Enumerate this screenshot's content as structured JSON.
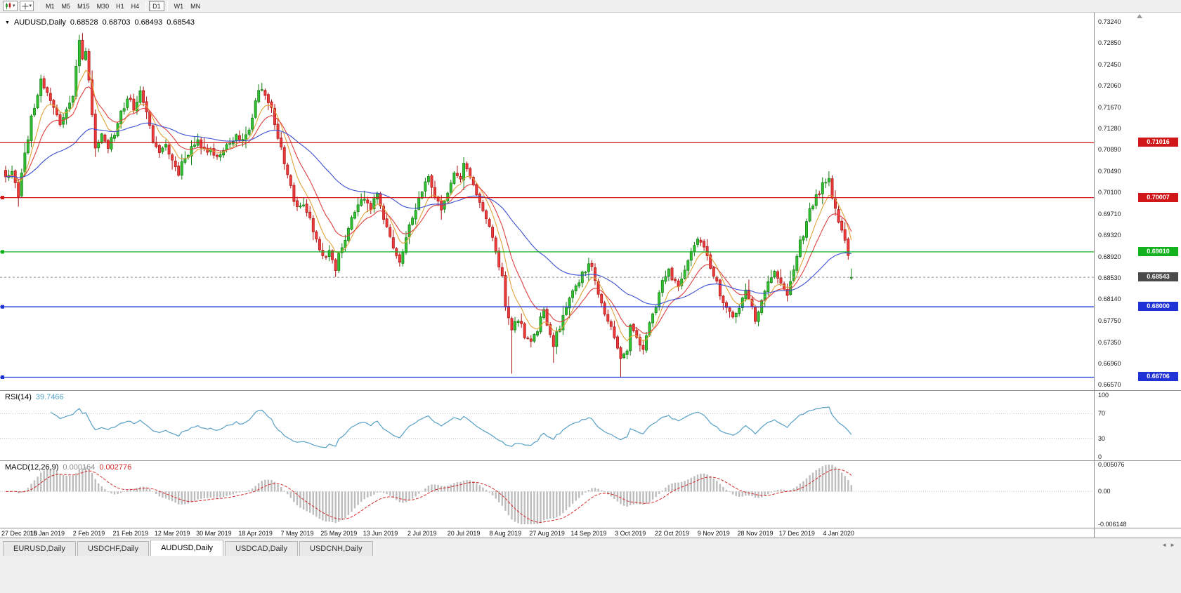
{
  "toolbar": {
    "timeframes": [
      "M1",
      "M5",
      "M15",
      "M30",
      "H1",
      "H4",
      "D1",
      "W1",
      "MN"
    ],
    "active_timeframe": "D1"
  },
  "main_chart": {
    "symbol_title": "AUDUSD,Daily",
    "ohlc": {
      "open": "0.68528",
      "high": "0.68703",
      "low": "0.68493",
      "close": "0.68543"
    },
    "price_axis_labels": [
      "0.73240",
      "0.72850",
      "0.72450",
      "0.72060",
      "0.71670",
      "0.71280",
      "0.70890",
      "0.70490",
      "0.70100",
      "0.69710",
      "0.69320",
      "0.68920",
      "0.68530",
      "0.68140",
      "0.67750",
      "0.67350",
      "0.66960",
      "0.66570"
    ],
    "horizontal_lines": [
      {
        "price": 0.71016,
        "label": "0.71016",
        "color": "#d01616",
        "left_marker": false
      },
      {
        "price": 0.70007,
        "label": "0.70007",
        "color": "#d01616",
        "left_marker": true
      },
      {
        "price": 0.6901,
        "label": "0.69010",
        "color": "#12b11e",
        "left_marker": true
      },
      {
        "price": 0.68,
        "label": "0.68000",
        "color": "#1e32d6",
        "left_marker": true
      },
      {
        "price": 0.66706,
        "label": "0.66706",
        "color": "#1e32d6",
        "left_marker": true
      }
    ],
    "current_price": 0.68543,
    "current_price_label": "0.68543"
  },
  "rsi_panel": {
    "title": "RSI(14)",
    "value": "39.7466",
    "axis": [
      {
        "label": "100",
        "value": 100
      },
      {
        "label": "70",
        "value": 70
      },
      {
        "label": "30",
        "value": 30
      },
      {
        "label": "0",
        "value": 0
      }
    ],
    "levels": [
      70,
      30
    ]
  },
  "macd_panel": {
    "title": "MACD(12,26,9)",
    "macd_value": "0.000164",
    "signal_value": "0.002776",
    "axis": [
      {
        "label": "0.005076",
        "value": 0.005076
      },
      {
        "label": "0.00",
        "value": 0
      },
      {
        "label": "-0.006148",
        "value": -0.006148
      }
    ],
    "scale_max": 0.005076,
    "scale_min": -0.006148
  },
  "time_axis": {
    "labels": [
      "27 Dec 2018",
      "15 Jan 2019",
      "2 Feb 2019",
      "21 Feb 2019",
      "12 Mar 2019",
      "30 Mar 2019",
      "18 Apr 2019",
      "7 May 2019",
      "25 May 2019",
      "13 Jun 2019",
      "2 Jul 2019",
      "20 Jul 2019",
      "8 Aug 2019",
      "27 Aug 2019",
      "14 Sep 2019",
      "3 Oct 2019",
      "22 Oct 2019",
      "9 Nov 2019",
      "28 Nov 2019",
      "17 Dec 2019",
      "4 Jan 2020"
    ]
  },
  "tab_bar": {
    "tabs": [
      "EURUSD,Daily",
      "USDCHF,Daily",
      "AUDUSD,Daily",
      "USDCAD,Daily",
      "USDCNH,Daily"
    ],
    "active": "AUDUSD,Daily"
  },
  "colors": {
    "up": "#33c133",
    "up_border": "#0e7c0e",
    "down": "#ee3b3b",
    "down_border": "#aa1111",
    "rsi": "#57a0c6",
    "macd_hist": "#bdbdbd",
    "macd_signal": "#d42a2a"
  },
  "chart_data": {
    "type": "candlestick",
    "symbol": "AUDUSD",
    "timeframe": "Daily",
    "candle_count": 265,
    "candles_per_label": 13,
    "seed": 11,
    "close_anchors": [
      [
        0,
        0.7039
      ],
      [
        2,
        0.7052
      ],
      [
        4,
        0.7008
      ],
      [
        6,
        0.7078
      ],
      [
        8,
        0.7148
      ],
      [
        11,
        0.7215
      ],
      [
        13,
        0.7196
      ],
      [
        15,
        0.7166
      ],
      [
        17,
        0.7136
      ],
      [
        19,
        0.716
      ],
      [
        21,
        0.7192
      ],
      [
        23,
        0.7286
      ],
      [
        24,
        0.7262
      ],
      [
        25,
        0.7272
      ],
      [
        26,
        0.7222
      ],
      [
        27,
        0.7152
      ],
      [
        28,
        0.7098
      ],
      [
        30,
        0.7112
      ],
      [
        32,
        0.7088
      ],
      [
        34,
        0.7122
      ],
      [
        36,
        0.7156
      ],
      [
        38,
        0.7186
      ],
      [
        40,
        0.7166
      ],
      [
        42,
        0.7192
      ],
      [
        44,
        0.7152
      ],
      [
        46,
        0.7108
      ],
      [
        48,
        0.7082
      ],
      [
        50,
        0.71
      ],
      [
        52,
        0.7068
      ],
      [
        54,
        0.7048
      ],
      [
        56,
        0.7078
      ],
      [
        58,
        0.7092
      ],
      [
        60,
        0.7106
      ],
      [
        62,
        0.7084
      ],
      [
        64,
        0.7094
      ],
      [
        66,
        0.7076
      ],
      [
        68,
        0.709
      ],
      [
        70,
        0.71
      ],
      [
        72,
        0.7116
      ],
      [
        74,
        0.7106
      ],
      [
        76,
        0.713
      ],
      [
        78,
        0.7176
      ],
      [
        80,
        0.7206
      ],
      [
        81,
        0.7192
      ],
      [
        83,
        0.7162
      ],
      [
        85,
        0.7112
      ],
      [
        87,
        0.7062
      ],
      [
        89,
        0.7018
      ],
      [
        91,
        0.6982
      ],
      [
        93,
        0.6992
      ],
      [
        95,
        0.6958
      ],
      [
        97,
        0.6918
      ],
      [
        99,
        0.6888
      ],
      [
        101,
        0.6902
      ],
      [
        103,
        0.6872
      ],
      [
        104,
        0.6896
      ],
      [
        106,
        0.6926
      ],
      [
        108,
        0.6962
      ],
      [
        110,
        0.6986
      ],
      [
        112,
        0.6996
      ],
      [
        114,
        0.6984
      ],
      [
        116,
        0.7006
      ],
      [
        117,
        0.6982
      ],
      [
        119,
        0.6948
      ],
      [
        121,
        0.6914
      ],
      [
        123,
        0.6888
      ],
      [
        125,
        0.6926
      ],
      [
        127,
        0.6964
      ],
      [
        129,
        0.6994
      ],
      [
        130,
        0.7012
      ],
      [
        132,
        0.7036
      ],
      [
        134,
        0.7006
      ],
      [
        136,
        0.6978
      ],
      [
        138,
        0.7014
      ],
      [
        140,
        0.7046
      ],
      [
        142,
        0.7036
      ],
      [
        143,
        0.7062
      ],
      [
        145,
        0.7042
      ],
      [
        147,
        0.7006
      ],
      [
        149,
        0.6974
      ],
      [
        151,
        0.6944
      ],
      [
        153,
        0.6904
      ],
      [
        155,
        0.6854
      ],
      [
        156,
        0.6798
      ],
      [
        158,
        0.676
      ],
      [
        160,
        0.678
      ],
      [
        162,
        0.6748
      ],
      [
        164,
        0.673
      ],
      [
        166,
        0.676
      ],
      [
        168,
        0.679
      ],
      [
        169,
        0.677
      ],
      [
        171,
        0.673
      ],
      [
        173,
        0.6764
      ],
      [
        175,
        0.6804
      ],
      [
        177,
        0.6824
      ],
      [
        179,
        0.685
      ],
      [
        181,
        0.687
      ],
      [
        182,
        0.6886
      ],
      [
        184,
        0.6848
      ],
      [
        186,
        0.6808
      ],
      [
        188,
        0.6778
      ],
      [
        190,
        0.6748
      ],
      [
        192,
        0.6708
      ],
      [
        194,
        0.6724
      ],
      [
        195,
        0.6764
      ],
      [
        197,
        0.6744
      ],
      [
        199,
        0.6724
      ],
      [
        201,
        0.6764
      ],
      [
        203,
        0.6804
      ],
      [
        205,
        0.6844
      ],
      [
        207,
        0.6876
      ],
      [
        208,
        0.6856
      ],
      [
        210,
        0.6836
      ],
      [
        212,
        0.6866
      ],
      [
        214,
        0.6896
      ],
      [
        216,
        0.6926
      ],
      [
        218,
        0.6906
      ],
      [
        220,
        0.6876
      ],
      [
        221,
        0.6856
      ],
      [
        223,
        0.6826
      ],
      [
        225,
        0.6796
      ],
      [
        227,
        0.6776
      ],
      [
        229,
        0.6804
      ],
      [
        231,
        0.6824
      ],
      [
        233,
        0.6794
      ],
      [
        234,
        0.6774
      ],
      [
        236,
        0.6814
      ],
      [
        238,
        0.6844
      ],
      [
        240,
        0.6866
      ],
      [
        242,
        0.684
      ],
      [
        244,
        0.6824
      ],
      [
        246,
        0.6866
      ],
      [
        247,
        0.6896
      ],
      [
        249,
        0.6936
      ],
      [
        251,
        0.6976
      ],
      [
        253,
        0.7002
      ],
      [
        255,
        0.7022
      ],
      [
        257,
        0.703
      ],
      [
        258,
        0.7006
      ],
      [
        259,
        0.6984
      ],
      [
        260,
        0.6956
      ],
      [
        261,
        0.6934
      ],
      [
        262,
        0.6926
      ],
      [
        263,
        0.6896
      ],
      [
        264,
        0.68543
      ]
    ],
    "wick_overrides": {
      "4": {
        "low": 0.6984
      },
      "23": {
        "high": 0.73
      },
      "158": {
        "low": 0.6677
      },
      "171": {
        "low": 0.6697
      },
      "192": {
        "low": 0.6671
      },
      "256": {
        "high": 0.7036
      }
    },
    "last_candle": {
      "open": 0.68528,
      "high": 0.68703,
      "low": 0.68493,
      "close": 0.68543
    },
    "moving_averages": [
      {
        "name": "ma-fast",
        "period": 7,
        "color": "#e2a33a"
      },
      {
        "name": "ma-mid",
        "period": 14,
        "color": "#dd4040"
      },
      {
        "name": "ma-slow",
        "period": 50,
        "color": "#3a4fd2"
      }
    ],
    "indicators": {
      "rsi_period": 14,
      "macd": [
        12,
        26,
        9
      ]
    }
  }
}
